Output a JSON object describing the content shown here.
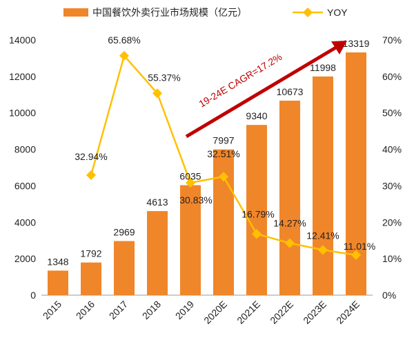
{
  "chart_data": {
    "type": "bar+line",
    "categories": [
      "2015",
      "2016",
      "2017",
      "2018",
      "2019",
      "2020E",
      "2021E",
      "2022E",
      "2023E",
      "2024E"
    ],
    "series": [
      {
        "name": "中国餐饮外卖行业市场规模（亿元）",
        "type": "bar",
        "axis": "left",
        "values": [
          1348,
          1792,
          2969,
          4613,
          6035,
          7997,
          9340,
          10673,
          11998,
          13319
        ],
        "labels": [
          "1348",
          "1792",
          "2969",
          "4613",
          "6035",
          "7997",
          "9340",
          "10673",
          "11998",
          "13319"
        ],
        "color": "#F0862A"
      },
      {
        "name": "YOY",
        "type": "line",
        "axis": "right",
        "values": [
          null,
          32.94,
          65.68,
          55.37,
          30.83,
          32.51,
          16.79,
          14.27,
          12.41,
          11.01
        ],
        "labels": [
          "",
          "32.94%",
          "65.68%",
          "55.37%",
          "30.83%",
          "32.51%",
          "16.79%",
          "14.27%",
          "12.41%",
          "11.01%"
        ],
        "color": "#FFC000"
      }
    ],
    "left_axis": {
      "ylim": [
        0,
        14000
      ],
      "ticks": [
        "0",
        "2000",
        "4000",
        "6000",
        "8000",
        "10000",
        "12000",
        "14000"
      ]
    },
    "right_axis": {
      "ylim": [
        0,
        70
      ],
      "ticks": [
        "0%",
        "10%",
        "20%",
        "30%",
        "40%",
        "50%",
        "60%",
        "70%"
      ]
    },
    "annotation": {
      "text": "19-24E CAGR=17.2%",
      "color": "#C00000"
    },
    "legend": "top",
    "grid": false
  }
}
